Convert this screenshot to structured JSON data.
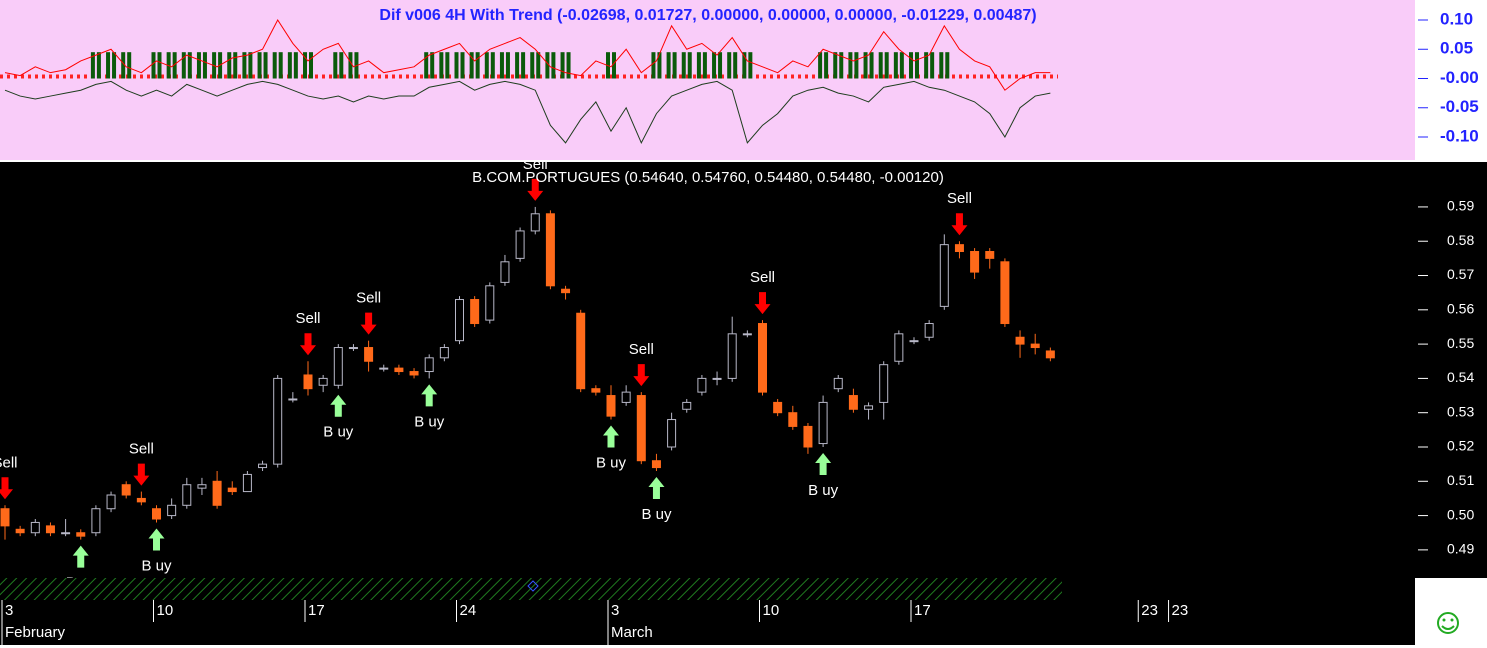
{
  "chart_data": [
    {
      "type": "line",
      "title": "Dif v006 4H With Trend (-0.02698, 0.01727, 0.00000, 0.00000, 0.00000, -0.01229, 0.00487)",
      "ylim": [
        -0.1393,
        0.1342
      ],
      "yticks": [
        {
          "value": 0.1,
          "label": "0.10"
        },
        0.05,
        {
          "value": 0,
          "label": "-0.00"
        },
        -0.05,
        {
          "value": -0.1,
          "label": "-0.10"
        }
      ],
      "series": [
        {
          "type": "bar",
          "color": "#0b5a0b",
          "values": [
            null,
            null,
            null,
            null,
            null,
            null,
            0.045,
            0.045,
            0.045,
            null,
            0.045,
            0.045,
            0.045,
            0.045,
            0.045,
            0.045,
            0.045,
            0.045,
            0.045,
            0.045,
            0.045,
            null,
            0.045,
            0.045,
            null,
            null,
            null,
            null,
            0.045,
            0.045,
            0.045,
            0.045,
            0.045,
            0.045,
            0.045,
            0.045,
            0.045,
            0.045,
            null,
            null,
            0.045,
            null,
            null,
            0.045,
            0.045,
            0.045,
            0.045,
            0.045,
            0.045,
            0.045,
            null,
            null,
            null,
            null,
            0.045,
            0.045,
            0.045,
            0.045,
            0.045,
            0.045,
            0.045,
            0.045,
            0.045,
            null,
            null,
            null,
            null,
            null,
            null,
            null,
            null,
            null,
            null,
            null,
            null,
            null,
            null,
            null
          ]
        },
        {
          "type": "line",
          "color": "#ff0000",
          "values": [
            0.01,
            0.005,
            0.02,
            0.01,
            0.015,
            0.03,
            0.04,
            0.05,
            0.02,
            0.01,
            0.03,
            0.02,
            0.04,
            0.03,
            0.02,
            0.035,
            0.04,
            0.05,
            0.1,
            0.06,
            0.03,
            0.05,
            0.06,
            0.02,
            0.03,
            0.01,
            0.015,
            0.02,
            0.04,
            0.05,
            0.06,
            0.03,
            0.05,
            0.06,
            0.07,
            0.05,
            0.02,
            0.01,
            0.005,
            0.03,
            0.02,
            0.05,
            0.01,
            0.03,
            0.09,
            0.05,
            0.06,
            0.04,
            0.07,
            0.03,
            0.02,
            0.01,
            0.03,
            0.02,
            0.05,
            0.04,
            0.03,
            0.04,
            0.08,
            0.05,
            0.03,
            0.04,
            0.09,
            0.05,
            0.03,
            0.02,
            -0.02,
            0,
            0.01,
            0.01,
            null,
            null,
            null,
            null,
            null,
            null,
            null,
            null
          ]
        },
        {
          "type": "line",
          "color": "#1e3d1e",
          "values": [
            -0.02,
            -0.03,
            -0.035,
            -0.03,
            -0.025,
            -0.02,
            -0.01,
            -0.005,
            -0.02,
            -0.03,
            -0.02,
            -0.03,
            -0.01,
            -0.02,
            -0.03,
            -0.02,
            -0.01,
            -0.005,
            -0.01,
            -0.02,
            -0.03,
            -0.035,
            -0.03,
            -0.04,
            -0.03,
            -0.035,
            -0.03,
            -0.03,
            -0.015,
            -0.01,
            -0.005,
            -0.02,
            -0.01,
            -0.005,
            -0.01,
            -0.02,
            -0.08,
            -0.11,
            -0.07,
            -0.04,
            -0.09,
            -0.05,
            -0.11,
            -0.06,
            -0.03,
            -0.02,
            -0.01,
            -0.005,
            -0.02,
            -0.11,
            -0.08,
            -0.06,
            -0.03,
            -0.02,
            -0.015,
            -0.025,
            -0.03,
            -0.04,
            -0.015,
            -0.01,
            -0.005,
            -0.015,
            -0.02,
            -0.03,
            -0.04,
            -0.06,
            -0.1,
            -0.05,
            -0.03,
            -0.025,
            null,
            null,
            null,
            null,
            null,
            null,
            null,
            null
          ]
        }
      ]
    },
    {
      "type": "candlestick",
      "title": "B.COM.PORTUGUES (0.54640, 0.54760, 0.54480, 0.54480, -0.00120)",
      "ylim": [
        0.4818,
        0.6031
      ],
      "yticks": [
        0.49,
        {
          "value": 0.5,
          "label": "0.50"
        },
        0.51,
        0.52,
        0.53,
        0.54,
        0.55,
        0.56,
        0.57,
        0.58,
        0.59
      ],
      "colors": {
        "up": "#b8b8c8",
        "down": "#ff6a1a",
        "sell": "#ff0000",
        "buy": "#99ff99"
      },
      "categories": [
        "3",
        null,
        null,
        null,
        null,
        null,
        null,
        null,
        null,
        null,
        "10",
        null,
        null,
        null,
        null,
        null,
        null,
        null,
        null,
        null,
        "17",
        null,
        null,
        null,
        null,
        null,
        null,
        null,
        null,
        null,
        "24",
        null,
        null,
        null,
        null,
        null,
        null,
        null,
        null,
        null,
        "3",
        null,
        null,
        null,
        null,
        null,
        null,
        null,
        null,
        null,
        "10",
        null,
        null,
        null,
        null,
        null,
        null,
        null,
        null,
        null,
        "17",
        null,
        null,
        null,
        null,
        null,
        null,
        null,
        null,
        null,
        null,
        null,
        null,
        null,
        null,
        "23",
        null,
        "23"
      ],
      "months": [
        "February",
        null,
        null,
        null,
        null,
        null,
        null,
        null,
        null,
        null,
        null,
        null,
        null,
        null,
        null,
        null,
        null,
        null,
        null,
        null,
        null,
        null,
        null,
        null,
        null,
        null,
        null,
        null,
        null,
        null,
        null,
        null,
        null,
        null,
        null,
        null,
        null,
        null,
        null,
        null,
        "March",
        null,
        null,
        null,
        null,
        null,
        null,
        null,
        null,
        null,
        null,
        null,
        null,
        null,
        null,
        null,
        null,
        null,
        null,
        null,
        null,
        null,
        null,
        null,
        null,
        null,
        null,
        null,
        null,
        null,
        null,
        null,
        null,
        null,
        null,
        null,
        null,
        null
      ],
      "open": [
        0.502,
        0.496,
        0.495,
        0.497,
        0.495,
        0.495,
        0.495,
        0.502,
        0.509,
        0.505,
        0.502,
        0.5,
        0.503,
        0.508,
        0.51,
        0.508,
        0.507,
        0.514,
        0.515,
        0.534,
        0.541,
        0.538,
        0.538,
        0.549,
        0.549,
        0.543,
        0.543,
        0.542,
        0.542,
        0.546,
        0.551,
        0.563,
        0.557,
        0.568,
        0.575,
        0.583,
        0.588,
        0.566,
        0.559,
        0.537,
        0.535,
        0.533,
        0.535,
        0.516,
        0.52,
        0.531,
        0.536,
        0.54,
        0.54,
        0.553,
        0.556,
        0.533,
        0.53,
        0.526,
        0.521,
        0.537,
        0.535,
        0.531,
        0.533,
        0.545,
        0.551,
        0.552,
        0.561,
        0.579,
        0.577,
        0.577,
        0.574,
        0.552,
        0.55,
        0.548,
        null,
        null,
        null,
        null,
        null,
        null,
        null,
        null
      ],
      "high": [
        0.503,
        0.497,
        0.499,
        0.498,
        0.499,
        0.496,
        0.503,
        0.507,
        0.51,
        0.507,
        0.503,
        0.505,
        0.511,
        0.511,
        0.513,
        0.51,
        0.513,
        0.516,
        0.541,
        0.536,
        0.545,
        0.541,
        0.55,
        0.55,
        0.551,
        0.544,
        0.544,
        0.543,
        0.547,
        0.55,
        0.564,
        0.564,
        0.568,
        0.576,
        0.584,
        0.59,
        0.589,
        0.567,
        0.56,
        0.538,
        0.538,
        0.538,
        0.536,
        0.518,
        0.53,
        0.534,
        0.541,
        0.542,
        0.558,
        0.554,
        0.557,
        0.534,
        0.532,
        0.527,
        0.535,
        0.541,
        0.537,
        0.533,
        0.545,
        0.554,
        0.552,
        0.557,
        0.582,
        0.58,
        0.578,
        0.578,
        0.575,
        0.554,
        0.553,
        0.549,
        null,
        null,
        null,
        null,
        null,
        null,
        null,
        null
      ],
      "low": [
        0.493,
        0.494,
        0.494,
        0.494,
        0.494,
        0.493,
        0.494,
        0.501,
        0.505,
        0.503,
        0.498,
        0.499,
        0.502,
        0.506,
        0.502,
        0.506,
        0.507,
        0.513,
        0.514,
        0.533,
        0.535,
        0.536,
        0.537,
        0.548,
        0.542,
        0.542,
        0.541,
        0.54,
        0.54,
        0.545,
        0.55,
        0.555,
        0.556,
        0.567,
        0.574,
        0.582,
        0.566,
        0.563,
        0.536,
        0.535,
        0.528,
        0.532,
        0.515,
        0.513,
        0.519,
        0.53,
        0.535,
        0.538,
        0.539,
        0.552,
        0.535,
        0.529,
        0.525,
        0.518,
        0.52,
        0.536,
        0.53,
        0.528,
        0.528,
        0.544,
        0.55,
        0.551,
        0.56,
        0.575,
        0.569,
        0.572,
        0.555,
        0.546,
        0.547,
        0.545,
        null,
        null,
        null,
        null,
        null,
        null,
        null,
        null
      ],
      "close": [
        0.497,
        0.495,
        0.498,
        0.495,
        0.495,
        0.494,
        0.502,
        0.506,
        0.506,
        0.504,
        0.499,
        0.503,
        0.509,
        0.509,
        0.503,
        0.507,
        0.512,
        0.515,
        0.54,
        0.534,
        0.537,
        0.54,
        0.549,
        0.549,
        0.545,
        0.543,
        0.542,
        0.541,
        0.546,
        0.549,
        0.563,
        0.556,
        0.567,
        0.574,
        0.583,
        0.588,
        0.567,
        0.565,
        0.537,
        0.536,
        0.529,
        0.536,
        0.516,
        0.514,
        0.528,
        0.533,
        0.54,
        0.54,
        0.553,
        0.553,
        0.536,
        0.53,
        0.526,
        0.52,
        0.533,
        0.54,
        0.531,
        0.532,
        0.544,
        0.553,
        0.551,
        0.556,
        0.579,
        0.577,
        0.571,
        0.575,
        0.556,
        0.55,
        0.549,
        0.546,
        null,
        null,
        null,
        null,
        null,
        null,
        null,
        null
      ],
      "sell": [
        "Sell",
        null,
        null,
        null,
        null,
        null,
        null,
        null,
        null,
        "Sell",
        null,
        null,
        null,
        null,
        null,
        null,
        null,
        null,
        null,
        null,
        "Sell",
        null,
        null,
        null,
        "Sell",
        null,
        null,
        null,
        null,
        null,
        null,
        null,
        null,
        null,
        null,
        "Sell",
        null,
        null,
        null,
        null,
        null,
        null,
        "Sell",
        null,
        null,
        null,
        null,
        null,
        null,
        null,
        "Sell",
        null,
        null,
        null,
        null,
        null,
        null,
        null,
        null,
        null,
        null,
        null,
        null,
        "Sell",
        null,
        null,
        null,
        null,
        null,
        null,
        null,
        null,
        null,
        null,
        null,
        null,
        null,
        null
      ],
      "buy": [
        null,
        null,
        null,
        null,
        null,
        "B uy",
        null,
        null,
        null,
        null,
        "B uy",
        null,
        null,
        null,
        null,
        null,
        null,
        null,
        null,
        null,
        null,
        null,
        "B uy",
        null,
        null,
        null,
        null,
        null,
        "B uy",
        null,
        null,
        null,
        null,
        null,
        null,
        null,
        null,
        null,
        null,
        null,
        "B uy",
        null,
        null,
        "B uy",
        null,
        null,
        null,
        null,
        null,
        null,
        null,
        null,
        null,
        null,
        "B uy",
        null,
        null,
        null,
        null,
        null,
        null,
        null,
        null,
        null,
        null,
        null,
        null,
        null,
        null,
        null,
        null,
        null,
        null,
        null,
        null,
        null,
        null,
        null
      ]
    }
  ]
}
